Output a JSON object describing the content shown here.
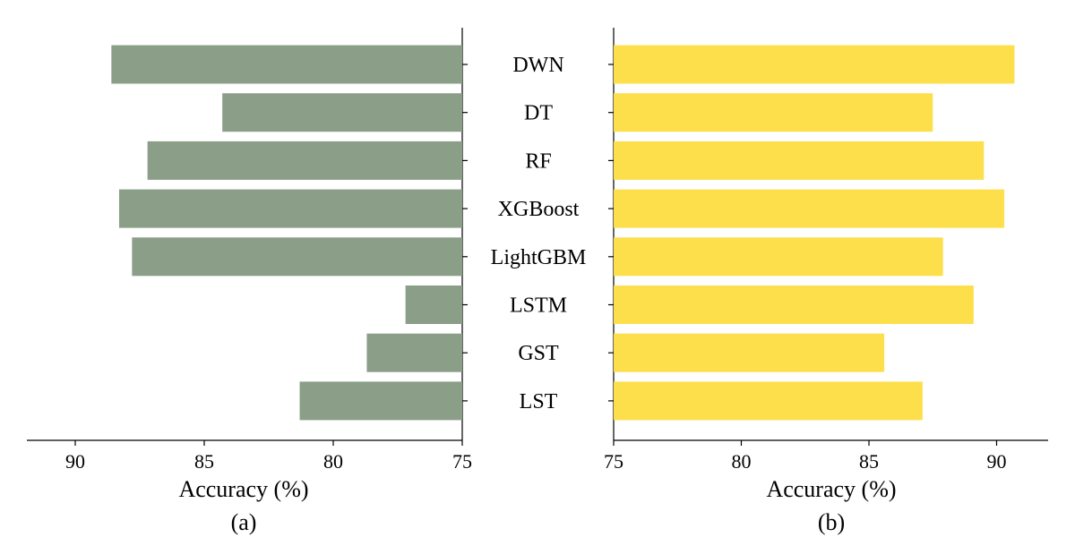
{
  "chart_data": [
    {
      "type": "bar",
      "orientation": "horizontal",
      "panel_label": "(a)",
      "xlabel": "Accuracy (%)",
      "xlim": [
        75,
        92
      ],
      "x_inverted": true,
      "xticks": [
        90,
        85,
        80,
        75
      ],
      "categories": [
        "DWN",
        "DT",
        "RF",
        "XGBoost",
        "LightGBM",
        "LSTM",
        "GST",
        "LST"
      ],
      "values": [
        88.6,
        84.3,
        87.2,
        88.3,
        87.8,
        77.2,
        78.7,
        81.3
      ],
      "color": "#8a9e88"
    },
    {
      "type": "bar",
      "orientation": "horizontal",
      "panel_label": "(b)",
      "xlabel": "Accuracy (%)",
      "xlim": [
        75,
        92
      ],
      "x_inverted": false,
      "xticks": [
        75,
        80,
        85,
        90
      ],
      "categories": [
        "DWN",
        "DT",
        "RF",
        "XGBoost",
        "LightGBM",
        "LSTM",
        "GST",
        "LST"
      ],
      "values": [
        90.7,
        87.5,
        89.5,
        90.3,
        87.9,
        89.1,
        85.6,
        87.1
      ],
      "color": "#fddf4c"
    }
  ]
}
